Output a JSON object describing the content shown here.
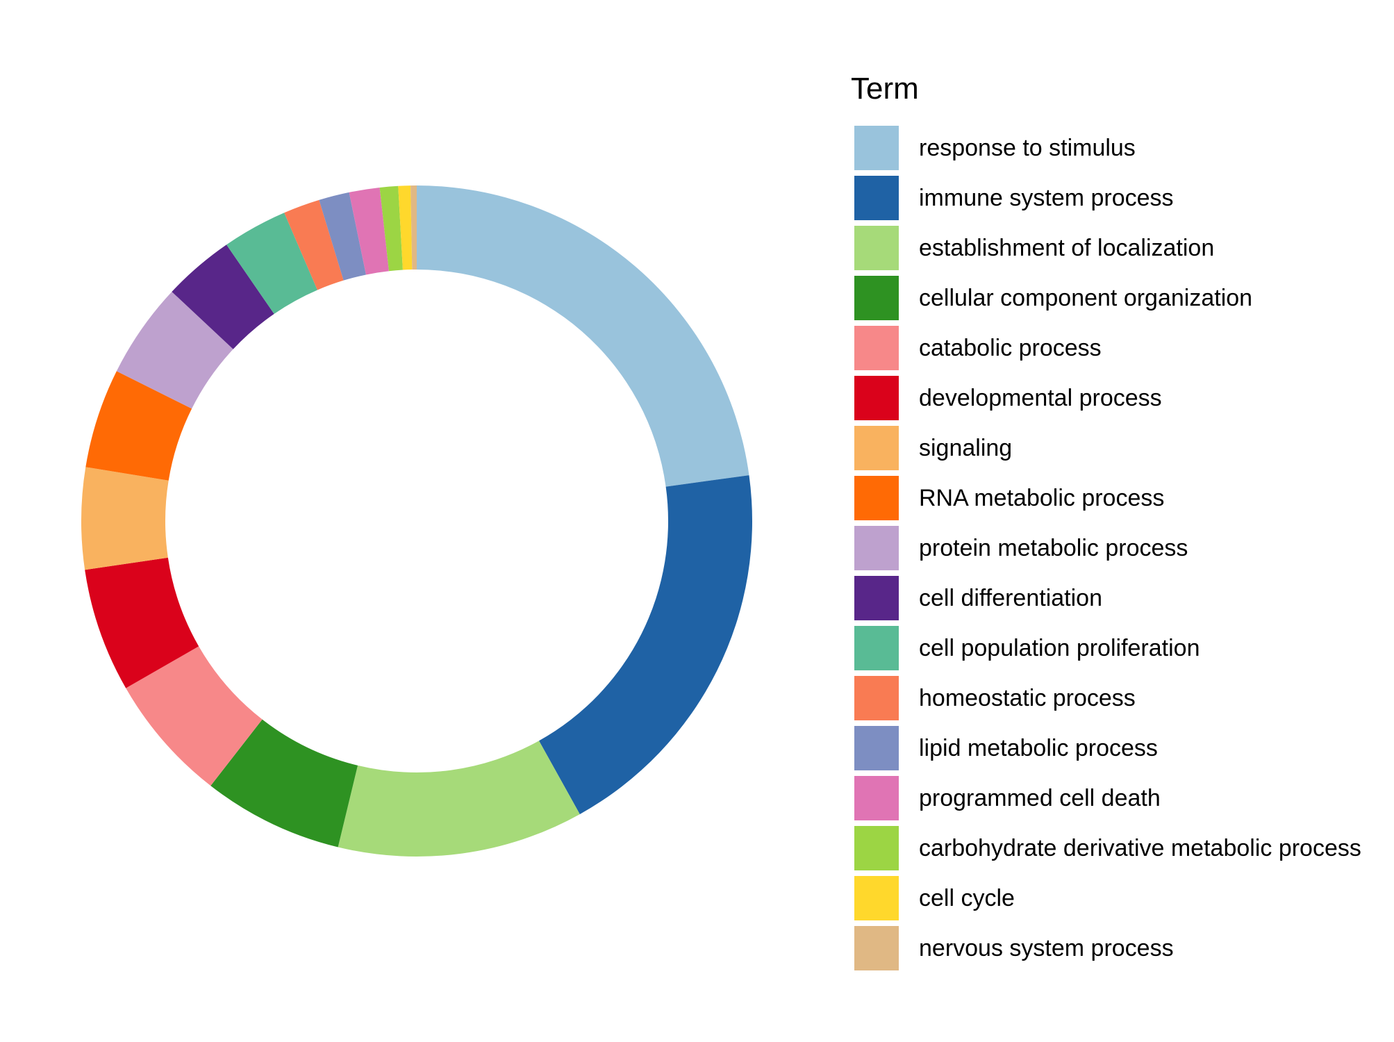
{
  "chart_data": {
    "type": "pie",
    "variant": "donut",
    "legend": {
      "title": "Term",
      "position": "right"
    },
    "slices": [
      {
        "label": "response to stimulus",
        "value": 23.3,
        "color": "#99C3DC"
      },
      {
        "label": "immune system process",
        "value": 19.5,
        "color": "#1F62A5"
      },
      {
        "label": "establishment of localization",
        "value": 12.1,
        "color": "#A6DA79"
      },
      {
        "label": "cellular component organization",
        "value": 6.9,
        "color": "#2E9222"
      },
      {
        "label": "catabolic process",
        "value": 6.3,
        "color": "#F78889"
      },
      {
        "label": "developmental process",
        "value": 6.1,
        "color": "#DA021B"
      },
      {
        "label": "signaling",
        "value": 5.0,
        "color": "#F9B25F"
      },
      {
        "label": "RNA metabolic process",
        "value": 4.9,
        "color": "#FF6A05"
      },
      {
        "label": "protein metabolic process",
        "value": 4.7,
        "color": "#BEA1CE"
      },
      {
        "label": "cell differentiation",
        "value": 3.5,
        "color": "#582689"
      },
      {
        "label": "cell population proliferation",
        "value": 3.2,
        "color": "#59BB95"
      },
      {
        "label": "homeostatic process",
        "value": 1.8,
        "color": "#F97B53"
      },
      {
        "label": "lipid metabolic process",
        "value": 1.5,
        "color": "#7D8EC2"
      },
      {
        "label": "programmed cell death",
        "value": 1.5,
        "color": "#E074B4"
      },
      {
        "label": "carbohydrate derivative metabolic process",
        "value": 0.9,
        "color": "#9CD544"
      },
      {
        "label": "cell cycle",
        "value": 0.6,
        "color": "#FFD82C"
      },
      {
        "label": "nervous system process",
        "value": 0.3,
        "color": "#E0B884"
      }
    ]
  }
}
